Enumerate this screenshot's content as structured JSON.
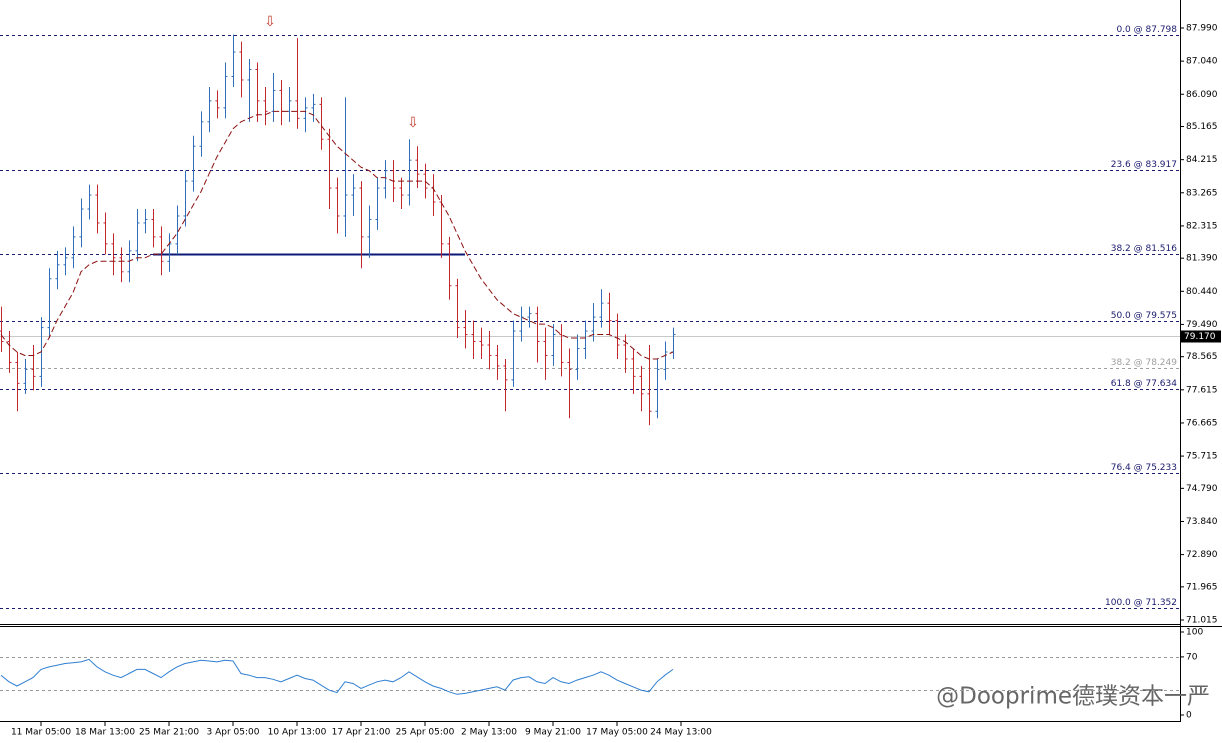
{
  "chart_data": {
    "type": "ohlc",
    "categories": [
      null,
      null,
      null,
      null,
      null,
      "11 Mar 05:00",
      null,
      null,
      null,
      null,
      null,
      null,
      null,
      "18 Mar 13:00",
      null,
      null,
      null,
      null,
      null,
      null,
      null,
      "25 Mar 21:00",
      null,
      null,
      null,
      null,
      null,
      null,
      null,
      "3 Apr 05:00",
      null,
      null,
      null,
      null,
      null,
      null,
      null,
      "10 Apr 13:00",
      null,
      null,
      null,
      null,
      null,
      null,
      null,
      "17 Apr 21:00",
      null,
      null,
      null,
      null,
      null,
      null,
      null,
      "25 Apr 05:00",
      null,
      null,
      null,
      null,
      null,
      null,
      null,
      "2 May 13:00",
      null,
      null,
      null,
      null,
      null,
      null,
      null,
      "9 May 21:00",
      null,
      null,
      null,
      null,
      null,
      null,
      null,
      "17 May 05:00",
      null,
      null,
      null,
      null,
      null,
      null,
      null,
      "24 May 13:00"
    ],
    "open": [
      79.3,
      79.0,
      78.4,
      77.8,
      78.2,
      78.0,
      79.4,
      80.8,
      81.2,
      81.4,
      82.0,
      82.8,
      83.2,
      82.4,
      81.8,
      81.4,
      81.0,
      81.6,
      82.4,
      82.5,
      82.0,
      81.3,
      81.8,
      82.6,
      83.6,
      84.6,
      85.3,
      85.9,
      85.7,
      86.6,
      87.3,
      86.5,
      86.8,
      85.9,
      85.6,
      86.2,
      85.6,
      85.9,
      85.4,
      85.7,
      85.8,
      84.8,
      83.4,
      82.6,
      83.2,
      83.4,
      82.0,
      82.5,
      83.4,
      83.9,
      83.4,
      83.2,
      84.2,
      83.8,
      83.4,
      83.0,
      81.8,
      80.6,
      79.4,
      79.2,
      79.0,
      78.9,
      78.6,
      78.3,
      77.9,
      79.3,
      79.7,
      79.8,
      79.0,
      78.6,
      79.2,
      78.4,
      78.2,
      78.8,
      79.3,
      79.7,
      80.1,
      79.6,
      78.9,
      78.5,
      78.0,
      77.5,
      77.0,
      78.2,
      78.7,
      null
    ],
    "high": [
      80.0,
      79.3,
      78.7,
      78.5,
      78.9,
      79.7,
      81.1,
      81.6,
      81.7,
      82.3,
      83.1,
      83.5,
      83.5,
      82.7,
      82.1,
      81.7,
      81.9,
      82.8,
      82.8,
      82.8,
      82.3,
      82.1,
      82.9,
      83.9,
      84.9,
      85.6,
      86.3,
      86.2,
      87.0,
      87.8,
      87.6,
      87.1,
      87.0,
      86.3,
      86.7,
      86.5,
      86.3,
      87.7,
      86.0,
      86.1,
      86.0,
      85.1,
      83.7,
      86.0,
      83.8,
      83.6,
      82.9,
      83.7,
      84.2,
      84.2,
      83.7,
      84.8,
      84.6,
      84.1,
      83.8,
      83.2,
      82.0,
      80.8,
      79.9,
      79.6,
      79.4,
      79.3,
      78.9,
      78.5,
      79.6,
      80.0,
      80.0,
      80.0,
      79.4,
      79.5,
      79.5,
      78.8,
      79.2,
      79.6,
      80.1,
      80.5,
      80.4,
      79.8,
      79.2,
      78.8,
      78.3,
      78.9,
      78.5,
      79.0,
      79.4,
      null
    ],
    "low": [
      78.7,
      78.1,
      77.0,
      77.5,
      77.6,
      77.7,
      79.1,
      80.5,
      80.9,
      81.1,
      81.7,
      82.5,
      82.1,
      81.5,
      80.9,
      80.7,
      80.7,
      81.3,
      82.1,
      81.7,
      80.9,
      81.0,
      81.5,
      82.3,
      83.3,
      84.3,
      85.0,
      85.4,
      85.4,
      86.3,
      86.0,
      85.3,
      85.3,
      85.2,
      85.3,
      85.2,
      85.3,
      85.1,
      85.0,
      85.3,
      84.5,
      82.8,
      82.1,
      82.0,
      82.6,
      81.1,
      81.4,
      82.2,
      83.1,
      83.0,
      82.8,
      82.9,
      83.4,
      83.1,
      82.6,
      81.4,
      80.2,
      79.1,
      78.8,
      78.5,
      78.5,
      78.2,
      77.9,
      77.0,
      77.7,
      79.0,
      79.4,
      78.4,
      77.9,
      78.3,
      78.0,
      76.8,
      77.9,
      78.5,
      79.0,
      79.4,
      79.2,
      78.5,
      78.1,
      77.5,
      77.0,
      76.6,
      76.8,
      77.9,
      78.5,
      null
    ],
    "close": [
      79.0,
      78.4,
      77.8,
      78.2,
      78.0,
      79.4,
      80.8,
      81.2,
      81.4,
      82.0,
      82.8,
      83.2,
      82.4,
      81.8,
      81.4,
      81.0,
      81.6,
      82.4,
      82.5,
      82.0,
      81.3,
      81.8,
      82.6,
      83.6,
      84.6,
      85.3,
      85.9,
      85.7,
      86.6,
      87.3,
      86.5,
      86.8,
      85.9,
      85.6,
      86.2,
      85.6,
      85.9,
      85.4,
      85.7,
      85.8,
      84.8,
      83.4,
      82.6,
      83.2,
      83.4,
      82.0,
      82.5,
      83.4,
      83.9,
      83.4,
      83.2,
      84.2,
      83.8,
      83.4,
      83.0,
      81.8,
      80.6,
      79.4,
      79.2,
      79.0,
      78.9,
      78.6,
      78.3,
      77.9,
      79.3,
      79.7,
      79.8,
      79.0,
      78.6,
      79.2,
      78.4,
      78.2,
      78.8,
      79.3,
      79.7,
      80.1,
      79.6,
      78.9,
      78.5,
      78.0,
      77.5,
      77.0,
      78.2,
      78.7,
      79.2,
      null
    ],
    "up_color": "#2f6fba",
    "down_color": "#c0282d",
    "moving_average": {
      "color": "#8b1010",
      "values": [
        79.2,
        78.9,
        78.7,
        78.6,
        78.6,
        78.7,
        79.1,
        79.6,
        80.0,
        80.4,
        81.0,
        81.2,
        81.3,
        81.3,
        81.3,
        81.3,
        81.3,
        81.4,
        81.4,
        81.5,
        81.5,
        81.8,
        82.1,
        82.5,
        82.9,
        83.3,
        83.8,
        84.3,
        84.7,
        85.1,
        85.3,
        85.4,
        85.5,
        85.5,
        85.6,
        85.6,
        85.6,
        85.6,
        85.6,
        85.5,
        85.2,
        84.9,
        84.6,
        84.4,
        84.2,
        84.0,
        83.9,
        83.7,
        83.7,
        83.6,
        83.6,
        83.6,
        83.6,
        83.6,
        83.4,
        83.0,
        82.6,
        82.1,
        81.6,
        81.2,
        80.8,
        80.5,
        80.2,
        80.0,
        79.8,
        79.7,
        79.6,
        79.5,
        79.5,
        79.4,
        79.2,
        79.1,
        79.1,
        79.1,
        79.2,
        79.2,
        79.2,
        79.1,
        79.0,
        78.8,
        78.6,
        78.5,
        78.5,
        78.6,
        78.7,
        null
      ]
    },
    "ylim": [
      70.9,
      88.793
    ],
    "yticks": [
      {
        "value": 87.99,
        "label": "87.990"
      },
      {
        "value": 87.04,
        "label": "87.040"
      },
      {
        "value": 86.09,
        "label": "86.090"
      },
      85.165,
      84.215,
      83.265,
      82.315,
      {
        "value": 81.39,
        "label": "81.390"
      },
      {
        "value": 80.44,
        "label": "80.440"
      },
      {
        "value": 79.49,
        "label": "79.490"
      },
      78.565,
      77.615,
      76.665,
      75.715,
      {
        "value": 74.79,
        "label": "74.790"
      },
      {
        "value": 73.84,
        "label": "73.840"
      },
      {
        "value": 72.89,
        "label": "72.890"
      },
      71.965,
      71.015
    ],
    "fib_levels": [
      {
        "value": 87.798,
        "label": "0.0 @ 87.798",
        "color": "#1a1a6e"
      },
      {
        "value": 83.917,
        "label": "23.6 @ 83.917",
        "color": "#1a1a6e"
      },
      {
        "value": 81.516,
        "label": "38.2 @ 81.516",
        "color": "#1a1a6e"
      },
      {
        "value": 79.575,
        "label": "50.0 @ 79.575",
        "color": "#1a1a6e"
      },
      {
        "value": 78.249,
        "label": "38.2 @ 78.249",
        "color": "#a0a0a0"
      },
      {
        "value": 77.634,
        "label": "61.8 @ 77.634",
        "color": "#1a1a6e"
      },
      {
        "value": 75.233,
        "label": "76.4 @ 75.233",
        "color": "#1a1a6e"
      },
      {
        "value": 71.352,
        "label": "100.0 @ 71.352",
        "color": "#1a1a6e"
      }
    ],
    "support_line": {
      "value": 81.516,
      "color": "#0b1a78"
    },
    "current_price": {
      "value": 79.17,
      "label": "79.170"
    },
    "rsi": {
      "color": "#2f7fd1",
      "ylim": [
        0,
        100
      ],
      "yticks": [
        100,
        70,
        0
      ],
      "levels": [
        70,
        30
      ],
      "values": [
        48,
        40,
        35,
        40,
        45,
        55,
        58,
        60,
        62,
        63,
        64,
        67,
        58,
        52,
        48,
        45,
        50,
        55,
        55,
        50,
        45,
        52,
        58,
        62,
        64,
        66,
        65,
        64,
        66,
        65,
        50,
        48,
        45,
        45,
        43,
        40,
        44,
        48,
        44,
        42,
        36,
        30,
        27,
        40,
        38,
        32,
        36,
        40,
        42,
        40,
        45,
        52,
        46,
        40,
        35,
        32,
        28,
        25,
        26,
        28,
        30,
        32,
        34,
        30,
        42,
        45,
        46,
        40,
        38,
        45,
        40,
        38,
        42,
        45,
        48,
        52,
        48,
        42,
        38,
        34,
        30,
        28,
        40,
        48,
        55,
        null
      ]
    },
    "watermark": "@Dooprime德璞资本一严"
  }
}
